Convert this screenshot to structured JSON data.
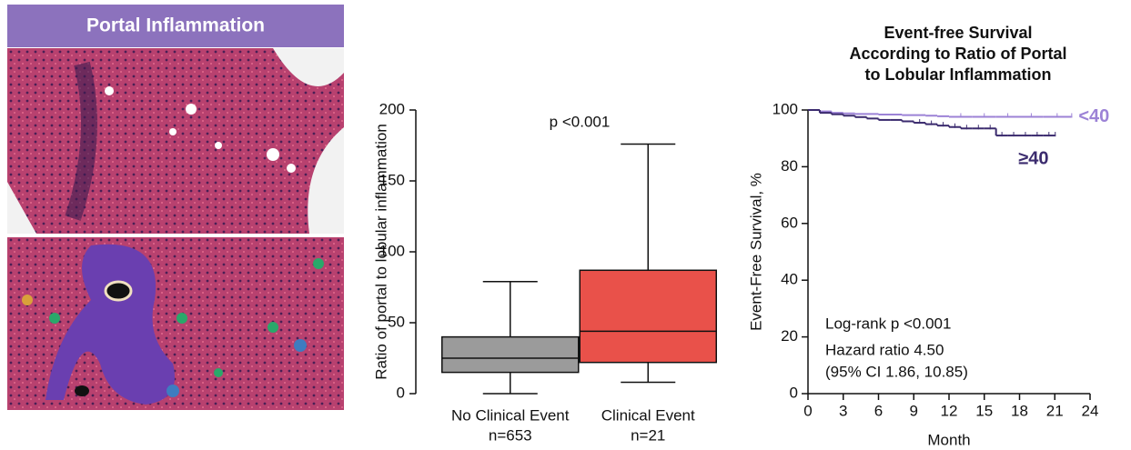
{
  "panel_title": "Portal Inflammation",
  "chart_data": [
    {
      "type": "box",
      "ylabel": "Ratio of portal to lobular inflammation",
      "annotation": "p <0.001",
      "categories": [
        "No Clinical Event",
        "Clinical Event"
      ],
      "n_labels": [
        "n=653",
        "n=21"
      ],
      "series": [
        {
          "name": "No Clinical Event",
          "color": "#9b9b9b",
          "min": 0,
          "q1": 15,
          "median": 25,
          "q3": 40,
          "max": 79
        },
        {
          "name": "Clinical Event",
          "color": "#e9514a",
          "min": 8,
          "q1": 22,
          "median": 44,
          "q3": 87,
          "max": 176
        }
      ],
      "ylim": [
        0,
        200
      ],
      "yticks": [
        0,
        50,
        100,
        150,
        200
      ]
    },
    {
      "type": "step",
      "title": [
        "Event-free Survival",
        "According to Ratio of Portal",
        "to Lobular Inflammation"
      ],
      "xlabel": "Month",
      "ylabel": "Event-Free Survival, %",
      "annotations": [
        "Log-rank p <0.001",
        "Hazard ratio 4.50",
        "(95% CI 1.86, 10.85)"
      ],
      "xlim": [
        0,
        24
      ],
      "xticks": [
        0,
        3,
        6,
        9,
        12,
        15,
        18,
        21,
        24
      ],
      "ylim": [
        0,
        100
      ],
      "yticks": [
        0,
        20,
        40,
        60,
        80,
        100
      ],
      "series": [
        {
          "name": "<40",
          "color": "#9c82d6",
          "x": [
            0,
            1,
            2,
            3,
            4,
            6,
            8,
            10,
            11,
            12,
            14,
            16,
            18,
            20,
            22.4
          ],
          "values": [
            100,
            99.5,
            99,
            98.8,
            98.6,
            98.4,
            98.2,
            98,
            97.8,
            97.6,
            97.6,
            97.6,
            97.6,
            97.6,
            97.6
          ]
        },
        {
          "name": "≥40",
          "color": "#3b2b6e",
          "x": [
            0,
            1,
            2,
            3,
            4,
            5,
            6,
            7,
            8,
            9,
            10,
            11,
            12,
            13,
            14,
            15,
            16,
            17,
            18,
            19,
            20,
            21
          ],
          "values": [
            100,
            99,
            98.5,
            98,
            97.5,
            97,
            96.5,
            96.5,
            96,
            95.5,
            95,
            94.5,
            94,
            93.5,
            93.5,
            93.5,
            91,
            91,
            91,
            91,
            91,
            91
          ]
        }
      ]
    }
  ]
}
